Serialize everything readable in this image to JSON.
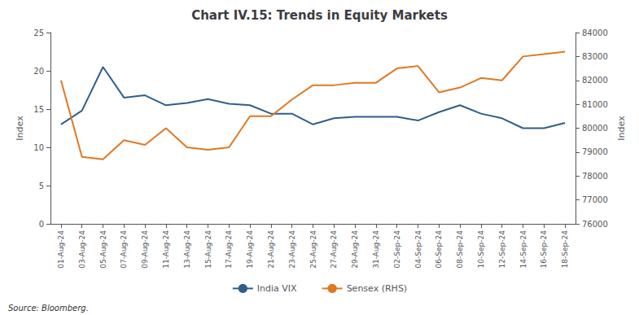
{
  "chart_data": {
    "type": "line",
    "title": "Chart IV.15: Trends in Equity Markets",
    "ylabel": "Index",
    "y2label": "Index",
    "annotations": [
      "Source: Bloomberg."
    ],
    "categories": [
      "01-Aug-24",
      "03-Aug-24",
      "05-Aug-24",
      "07-Aug-24",
      "09-Aug-24",
      "11-Aug-24",
      "13-Aug-24",
      "15-Aug-24",
      "17-Aug-24",
      "19-Aug-24",
      "21-Aug-24",
      "23-Aug-24",
      "25-Aug-24",
      "27-Aug-24",
      "29-Aug-24",
      "31-Aug-24",
      "02-Sep-24",
      "04-Sep-24",
      "06-Sep-24",
      "08-Sep-24",
      "10-Sep-24",
      "12-Sep-24",
      "14-Sep-24",
      "16-Sep-24",
      "18-Sep-24"
    ],
    "series": [
      {
        "name": "India VIX",
        "color": "#2e5f8a",
        "axis": "y",
        "values": [
          13.0,
          14.8,
          20.5,
          16.5,
          16.8,
          15.5,
          15.8,
          16.3,
          15.7,
          15.5,
          14.4,
          14.4,
          13.0,
          13.8,
          14.0,
          14.0,
          14.0,
          13.5,
          14.6,
          15.5,
          14.4,
          13.8,
          12.5,
          12.5,
          13.2
        ]
      },
      {
        "name": "Sensex (RHS)",
        "color": "#e07820",
        "axis": "y2",
        "values": [
          82000,
          78800,
          78700,
          79500,
          79300,
          80000,
          79200,
          79100,
          79200,
          80500,
          80500,
          81200,
          81800,
          81800,
          81900,
          81900,
          82500,
          82600,
          81500,
          81700,
          82100,
          82000,
          83000,
          83100,
          83200
        ]
      }
    ],
    "ylim": [
      0,
      25
    ],
    "yticks": [
      0,
      5,
      10,
      15,
      20,
      25
    ],
    "y2lim": [
      76000,
      84000
    ],
    "y2ticks": [
      76000,
      77000,
      78000,
      79000,
      80000,
      81000,
      82000,
      83000,
      84000
    ],
    "grid": false,
    "legend": "bottom"
  }
}
